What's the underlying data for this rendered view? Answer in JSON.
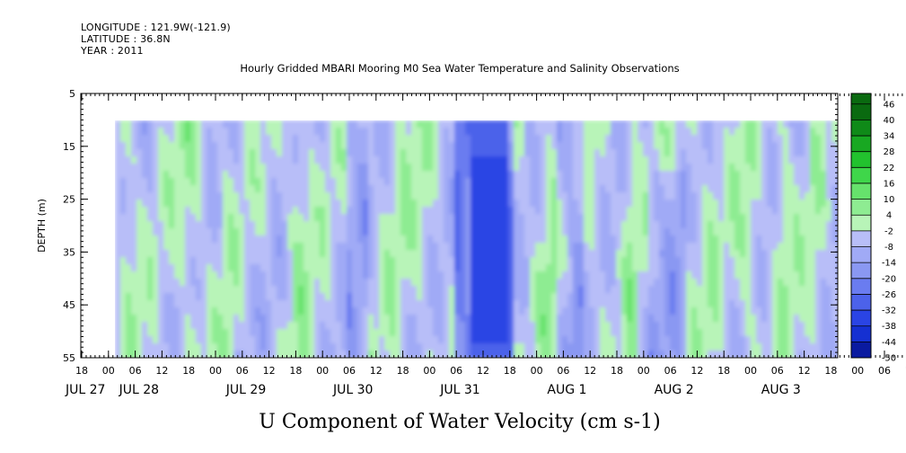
{
  "header": {
    "longitude": "LONGITUDE : 121.9W(-121.9)",
    "latitude": "LATITUDE : 36.8N",
    "year": "YEAR : 2011"
  },
  "chart_data": {
    "type": "heatmap",
    "title": "Hourly Gridded MBARI Mooring M0 Sea Water Temperature and Salinity Observations",
    "xlabel": "U Component of Water Velocity (cm s-1)",
    "ylabel": "DEPTH (m)",
    "ylim": [
      55,
      5
    ],
    "y_ticks": [
      5,
      15,
      25,
      35,
      45,
      55
    ],
    "data_depth_range": [
      10,
      55
    ],
    "x_hour_ticks": [
      "18",
      "00",
      "06",
      "12",
      "18",
      "00",
      "06",
      "12",
      "18",
      "00",
      "06",
      "12",
      "18",
      "00",
      "06",
      "12",
      "18",
      "00",
      "06",
      "12",
      "18",
      "00",
      "06",
      "12",
      "18",
      "00",
      "06",
      "12",
      "18",
      "00",
      "06",
      "12",
      "18"
    ],
    "x_date_labels": [
      {
        "text": "JUL 27",
        "tick_index": 0
      },
      {
        "text": "JUL 28",
        "tick_index": 2
      },
      {
        "text": "JUL 29",
        "tick_index": 6
      },
      {
        "text": "JUL 30",
        "tick_index": 10
      },
      {
        "text": "JUL 31",
        "tick_index": 14
      },
      {
        "text": "AUG  1",
        "tick_index": 18
      },
      {
        "text": "AUG  2",
        "tick_index": 22
      },
      {
        "text": "AUG  3",
        "tick_index": 26
      }
    ],
    "colorbar_levels": [
      "46",
      "40",
      "34",
      "28",
      "22",
      "16",
      "10",
      "4",
      "-2",
      "-8",
      "-14",
      "-20",
      "-26",
      "-32",
      "-38",
      "-44",
      "-50"
    ],
    "colorbar_range": [
      -50,
      50
    ],
    "grid": false,
    "values_by_time_approx": [
      {
        "time": "Jul 28 00",
        "surface": 4,
        "bottom": -6
      },
      {
        "time": "Jul 28 12",
        "surface": 2,
        "bottom": -10
      },
      {
        "time": "Jul 29 06",
        "surface": 6,
        "bottom": -8
      },
      {
        "time": "Jul 30 06",
        "surface": 4,
        "bottom": -10
      },
      {
        "time": "Jul 31 12",
        "surface": -26,
        "bottom": -32
      },
      {
        "time": "Aug 1 06",
        "surface": 4,
        "bottom": -20
      },
      {
        "time": "Aug 2 00",
        "surface": 4,
        "bottom": -10
      },
      {
        "time": "Aug 3 00",
        "surface": 4,
        "bottom": -14
      }
    ]
  },
  "colors": {
    "positive_light": "#b8f4b8",
    "positive_mid": "#80ec80",
    "negative_light": "#b8bef8",
    "negative_mid": "#6a7cf0",
    "negative_dark": "#1530e0"
  }
}
